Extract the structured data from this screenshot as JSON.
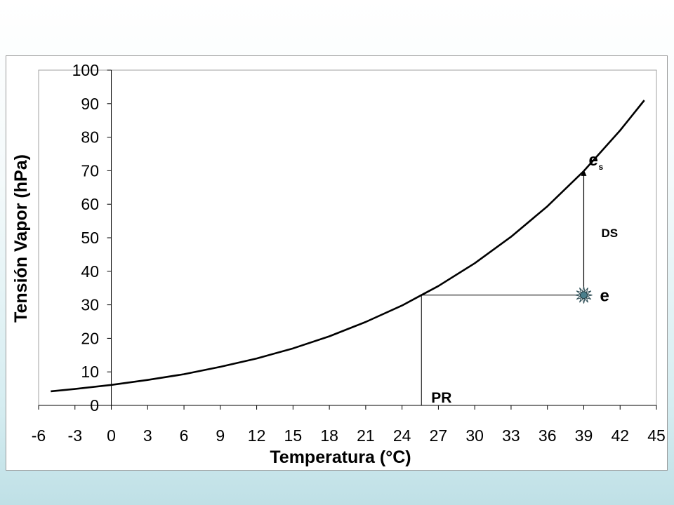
{
  "chart_data": {
    "type": "line",
    "title": "",
    "xlabel": "Temperatura (°C)",
    "ylabel": "Tensión Vapor  (hPa)",
    "xlim": [
      -6,
      45
    ],
    "ylim": [
      0,
      100
    ],
    "xticks": [
      -6,
      -3,
      0,
      3,
      6,
      9,
      12,
      15,
      18,
      21,
      24,
      27,
      30,
      33,
      36,
      39,
      42,
      45
    ],
    "yticks": [
      0,
      10,
      20,
      30,
      40,
      50,
      60,
      70,
      80,
      90,
      100
    ],
    "grid": false,
    "legend": "none",
    "series": [
      {
        "x": [
          -5,
          -3,
          0,
          3,
          6,
          9,
          12,
          15,
          18,
          21,
          24,
          25.6,
          27,
          30,
          33,
          36,
          39,
          42,
          44
        ],
        "y": [
          4.2,
          4.9,
          6.1,
          7.6,
          9.3,
          11.5,
          14.0,
          17.0,
          20.6,
          24.9,
          29.8,
          32.9,
          35.6,
          42.4,
          50.3,
          59.4,
          69.9,
          82.0,
          91.0
        ]
      }
    ],
    "annotations": {
      "point_e": {
        "x": 39,
        "y": 32.9,
        "label": "e"
      },
      "point_es": {
        "x": 39,
        "y": 69.9,
        "label": "e",
        "sub": "s"
      },
      "pr": {
        "x": 25.6,
        "label": "PR"
      },
      "ds": {
        "label": "DS"
      }
    }
  },
  "colors": {
    "curve": "#000000",
    "marker_fill": "#4a7f8c"
  }
}
